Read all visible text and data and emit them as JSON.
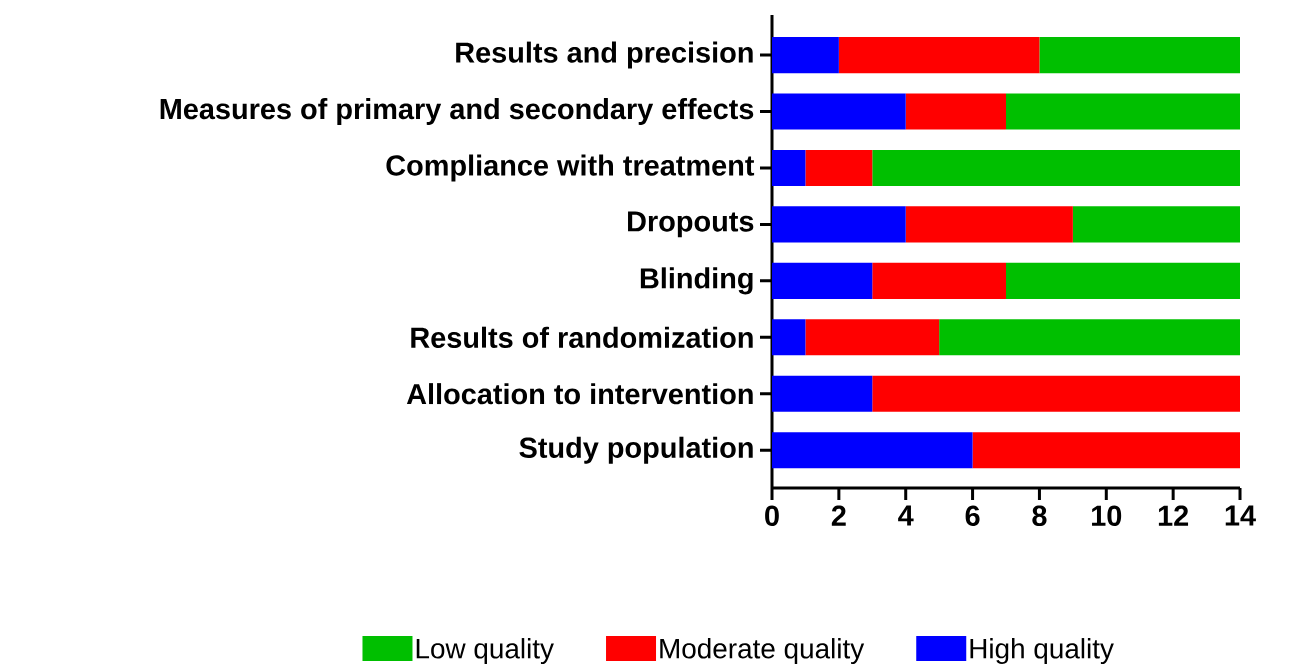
{
  "chart_data": {
    "type": "bar",
    "orientation": "horizontal",
    "stacked": true,
    "legend": "bottom",
    "categories": [
      "Results and precision",
      "Measures of primary and secondary effects",
      "Compliance with treatment",
      "Dropouts",
      "Blinding",
      "Results of randomization",
      "Allocation to intervention",
      "Study population"
    ],
    "series": [
      {
        "name": "High quality",
        "color": "#0000ff",
        "values": [
          2,
          4,
          1,
          4,
          3,
          1,
          3,
          6
        ]
      },
      {
        "name": "Moderate quality",
        "color": "#ff0000",
        "values": [
          6,
          3,
          2,
          5,
          4,
          4,
          11,
          8
        ]
      },
      {
        "name": "Low quality",
        "color": "#00bf00",
        "values": [
          6,
          7,
          11,
          5,
          7,
          9,
          0,
          0
        ]
      }
    ],
    "xlim": [
      0,
      14
    ],
    "xticks": [
      0,
      2,
      4,
      6,
      8,
      10,
      12,
      14
    ]
  }
}
